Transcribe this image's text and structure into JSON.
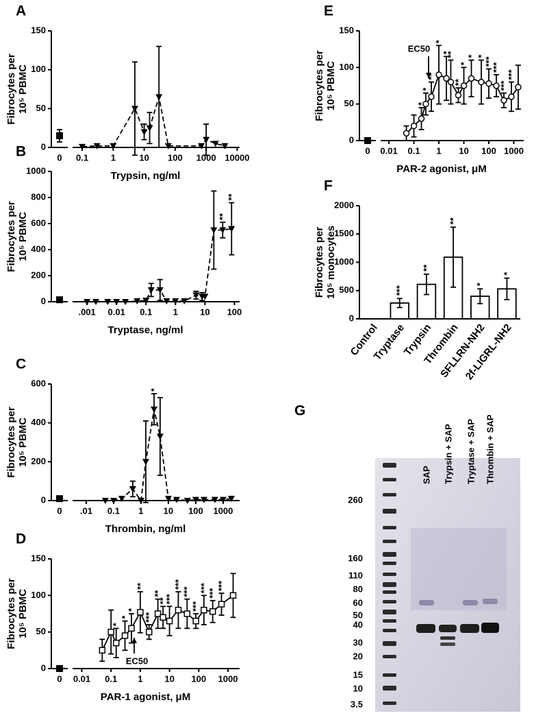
{
  "chart_data": [
    {
      "type": "dose",
      "panel": "A",
      "xlabel": "Trypsin, ng/ml",
      "ylabel": [
        "Fibrocytes per",
        "10⁵ PBMC"
      ],
      "x": [
        0.1,
        0.3,
        1,
        5,
        10,
        15,
        30,
        60,
        700,
        1000,
        2000,
        4000
      ],
      "values": [
        1,
        2,
        2,
        50,
        20,
        25,
        65,
        2,
        2,
        10,
        5,
        2
      ],
      "errors": [
        null,
        null,
        null,
        60,
        10,
        20,
        65,
        null,
        null,
        20,
        null,
        null
      ],
      "control": {
        "label": "0",
        "value": 15,
        "error": 8
      },
      "xlim": [
        0.06,
        12000
      ],
      "xticks": [
        0.1,
        1,
        10,
        100,
        1000,
        10000
      ],
      "ylim": [
        0,
        150
      ],
      "yticks": [
        0,
        50,
        100,
        150
      ],
      "line_style": "dashed",
      "marker": "triangle",
      "color": "#000000"
    },
    {
      "type": "dose",
      "panel": "B",
      "xlabel": "Tryptase, ng/ml",
      "ylabel": [
        "Fibrocytes per",
        "10⁵ PBMC"
      ],
      "x": [
        0.001,
        0.002,
        0.005,
        0.01,
        0.02,
        0.05,
        0.1,
        0.15,
        0.3,
        0.5,
        1,
        2,
        5,
        8,
        10,
        20,
        40,
        80
      ],
      "values": [
        0,
        0,
        0,
        0,
        0,
        5,
        10,
        90,
        90,
        5,
        5,
        5,
        50,
        40,
        40,
        550,
        550,
        560
      ],
      "errors": [
        null,
        null,
        null,
        null,
        null,
        null,
        null,
        50,
        80,
        null,
        null,
        null,
        30,
        30,
        null,
        300,
        60,
        200
      ],
      "significance": [
        null,
        null,
        null,
        null,
        null,
        null,
        null,
        null,
        null,
        null,
        null,
        null,
        null,
        null,
        null,
        null,
        "**",
        "**"
      ],
      "control": {
        "value": 15,
        "error": 5
      },
      "xlim": [
        0.0004,
        150
      ],
      "xticks": [
        {
          "value": 0.001,
          "label": ".001"
        },
        0.01,
        0.1,
        1,
        10,
        100
      ],
      "ylim": [
        0,
        1000
      ],
      "yticks": [
        0,
        200,
        400,
        600,
        800,
        1000
      ],
      "line_style": "dashed",
      "marker": "triangle",
      "color": "#000000"
    },
    {
      "type": "dose",
      "panel": "C",
      "xlabel": "Thrombin, ng/ml",
      "ylabel": [
        "Fibrocytes per",
        "10⁵ PBMC"
      ],
      "x": [
        0.05,
        0.1,
        0.2,
        0.5,
        1,
        1.5,
        3,
        5,
        10,
        20,
        50,
        100,
        200,
        500,
        1000,
        2000
      ],
      "values": [
        0,
        0,
        10,
        60,
        0,
        200,
        470,
        330,
        10,
        5,
        0,
        5,
        5,
        5,
        5,
        10
      ],
      "errors": [
        null,
        null,
        null,
        40,
        null,
        210,
        80,
        200,
        null,
        null,
        null,
        null,
        null,
        null,
        null,
        null
      ],
      "significance": [
        null,
        null,
        null,
        null,
        null,
        null,
        "*",
        null,
        null,
        null,
        null,
        null,
        null,
        null,
        null,
        null
      ],
      "control": {
        "label": "0",
        "value": 10,
        "error": 5
      },
      "xlim": [
        0.004,
        4000
      ],
      "xticks": [
        {
          "value": 0.01,
          "label": ".01"
        },
        0.1,
        1,
        10,
        100,
        1000
      ],
      "ylim": [
        0,
        600
      ],
      "yticks": [
        0,
        200,
        400,
        600
      ],
      "line_style": "dashed",
      "marker": "triangle",
      "color": "#000000"
    },
    {
      "type": "dose",
      "panel": "D",
      "xlabel": "PAR-1 agonist,  μM",
      "ylabel": [
        "Fibrocytes per",
        "10⁵ PBMC"
      ],
      "x": [
        0.05,
        0.1,
        0.15,
        0.3,
        0.5,
        1,
        2,
        4,
        6,
        10,
        20,
        40,
        80,
        150,
        300,
        600,
        1500
      ],
      "values": [
        25,
        50,
        35,
        45,
        55,
        77,
        50,
        75,
        70,
        65,
        80,
        75,
        65,
        80,
        78,
        88,
        100
      ],
      "errors": [
        15,
        30,
        20,
        20,
        20,
        28,
        10,
        20,
        15,
        20,
        25,
        20,
        10,
        20,
        15,
        15,
        30
      ],
      "significance": [
        null,
        null,
        "*",
        "*",
        "*",
        "**",
        "***",
        "**",
        "**",
        "***",
        "***",
        "***",
        "***",
        "***",
        "***",
        "***",
        null
      ],
      "control": {
        "label": "0",
        "value": 0
      },
      "annotation": "EC50",
      "xlim": [
        0.006,
        2500
      ],
      "xticks": [
        0.01,
        0.1,
        1,
        10,
        100,
        1000
      ],
      "ylim": [
        0,
        150
      ],
      "yticks": [
        0,
        50,
        100,
        150
      ],
      "line_style": "solid",
      "marker": "square",
      "color": "#000000"
    },
    {
      "type": "dose",
      "panel": "E",
      "xlabel": "PAR-2 agonist,  μM",
      "ylabel": [
        "Fibrocytes per",
        "10⁵ PBMC"
      ],
      "x": [
        0.05,
        0.1,
        0.2,
        0.3,
        0.5,
        1,
        2,
        3,
        6,
        10,
        20,
        50,
        100,
        200,
        400,
        800,
        1500
      ],
      "values": [
        10,
        20,
        30,
        50,
        60,
        90,
        85,
        80,
        62,
        75,
        85,
        80,
        78,
        75,
        55,
        60,
        73
      ],
      "errors": [
        10,
        15,
        15,
        15,
        20,
        40,
        30,
        30,
        10,
        25,
        25,
        30,
        20,
        15,
        10,
        20,
        30
      ],
      "significance": [
        null,
        null,
        "*",
        "*",
        "**",
        "*",
        "*",
        "**",
        "**",
        "*",
        "*",
        "*",
        "***",
        "***",
        "***",
        "***",
        null
      ],
      "control": {
        "label": "0",
        "value": 0
      },
      "annotation": "EC50",
      "xlim": [
        0.006,
        2500
      ],
      "xticks": [
        0.01,
        0.1,
        1,
        10,
        100,
        1000
      ],
      "ylim": [
        0,
        150
      ],
      "yticks": [
        0,
        50,
        100,
        150
      ],
      "line_style": "solid",
      "marker": "circle",
      "color": "#000000"
    },
    {
      "type": "bar",
      "panel": "F",
      "ylabel": [
        "Fibrocytes per",
        "10⁵ monocytes"
      ],
      "categories": [
        "Control",
        "Tryptase",
        "Trypsin",
        "Thrombin",
        "SFLLRN-NH2",
        "2f-LIGRL-NH2"
      ],
      "values": [
        0,
        280,
        610,
        1090,
        400,
        530
      ],
      "errors": [
        null,
        80,
        180,
        530,
        130,
        190
      ],
      "significance": [
        null,
        "***",
        "**",
        "**",
        "*",
        "*"
      ],
      "ylim": [
        0,
        2000
      ],
      "yticks": [
        0,
        500,
        1000,
        1500,
        2000
      ],
      "color": "#000000"
    },
    {
      "type": "gel",
      "panel": "G",
      "lanes": [
        "SAP",
        "Trypsin + SAP",
        "Tryptase + SAP",
        "Thrombin + SAP"
      ],
      "markers": [
        "260",
        "160",
        "110",
        "80",
        "60",
        "50",
        "40",
        "30",
        "20",
        "15",
        "10",
        "3.5"
      ]
    }
  ]
}
